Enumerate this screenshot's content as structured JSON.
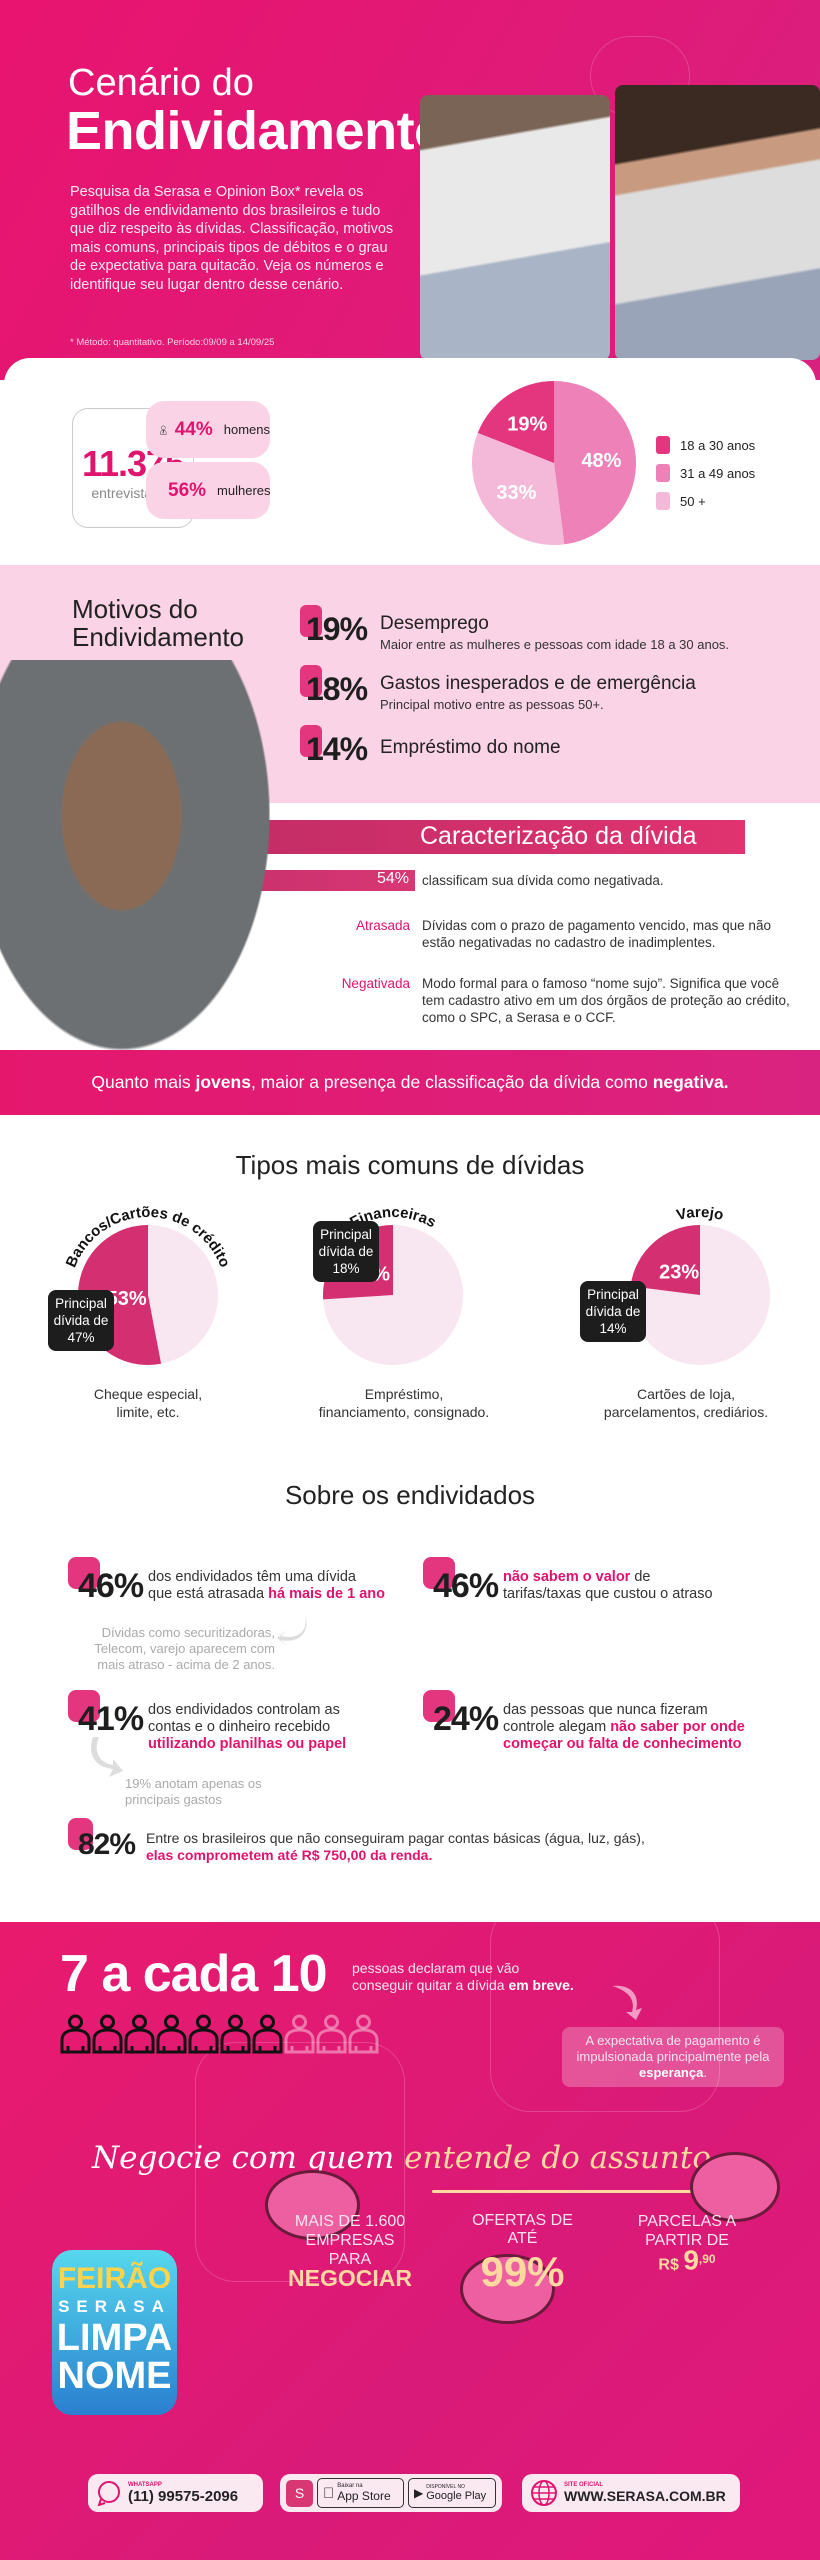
{
  "hero": {
    "title_line1": "Cenário do",
    "title_line2": "Endividamento",
    "intro": "Pesquisa da Serasa e Opinion Box* revela os gatilhos de endividamento dos brasileiros e tudo que diz respeito às dívidas. Classificação, motivos mais comuns, principais tipos de débitos e o grau de expectativa para quitacão. Veja os números e identifique seu lugar dentro desse cenário.",
    "footnote": "* Método: quantitativo. Período:09/09 a 14/09/25"
  },
  "stats": {
    "total": "11.375",
    "total_label": "entrevistados",
    "men_pct": "44%",
    "men_label": "homens",
    "women_pct": "56%",
    "women_label": "mulheres",
    "legend": [
      {
        "label": "18 a 30 anos",
        "color": "#e4357f"
      },
      {
        "label": "31 a 49 anos",
        "color": "#ee82b8"
      },
      {
        "label": "50 +",
        "color": "#f4b9d9"
      }
    ]
  },
  "motivos": {
    "title": "Motivos do Endividamento",
    "items": [
      {
        "pct": "19%",
        "title": "Desemprego",
        "sub": "Maior entre as mulheres e pessoas com idade 18 a 30 anos."
      },
      {
        "pct": "18%",
        "title": "Gastos inesperados e de emergência",
        "sub": "Principal motivo entre as pessoas 50+."
      },
      {
        "pct": "14%",
        "title": "Empréstimo do nome",
        "sub": ""
      }
    ]
  },
  "caracterizacao": {
    "title": "Caracterização da dívida",
    "pct": "54%",
    "pct_text": "classificam sua dívida como negativada.",
    "rows": [
      {
        "label": "Atrasada",
        "text": "Dívidas com o prazo de pagamento vencido, mas que não estão negativadas no cadastro de inadimplentes."
      },
      {
        "label": "Negativada",
        "text": "Modo formal para o famoso “nome sujo”. Significa que você tem cadastro ativo em um dos órgãos de proteção ao crédito, como o SPC, a Serasa e o CCF."
      }
    ]
  },
  "banner": {
    "pre": "Quanto mais ",
    "b1": "jovens",
    "mid": ", maior a presença de classificação da dívida como ",
    "b2": "negativa."
  },
  "tipos": {
    "title": "Tipos mais comuns de dívidas"
  },
  "chart_data": [
    {
      "type": "pie",
      "series": [
        {
          "label": "18 a 30 anos",
          "value": 19
        },
        {
          "label": "31 a 49 anos",
          "value": 48
        },
        {
          "label": "50 +",
          "value": 33
        }
      ],
      "labels": [
        "19%",
        "48%",
        "33%"
      ]
    },
    {
      "type": "pie",
      "title": "Bancos/Cartões de crédito",
      "value": 53,
      "label": "53%",
      "tag": "Principal dívida de 47%",
      "caption_line1": "Cheque especial,",
      "caption_line2": "limite, etc."
    },
    {
      "type": "pie",
      "title": "Financeiras",
      "value": 26,
      "label": "26%",
      "tag": "Principal dívida de 18%",
      "caption_line1": "Empréstimo,",
      "caption_line2": "financiamento, consignado."
    },
    {
      "type": "pie",
      "title": "Varejo",
      "value": 23,
      "label": "23%",
      "tag": "Principal dívida de 14%",
      "caption_line1": "Cartões de loja,",
      "caption_line2": "parcelamentos, crediários."
    }
  ],
  "sobre": {
    "title": "Sobre os endividados",
    "s1": {
      "pct": "46%",
      "l1": "dos endividados têm uma dívida",
      "l2": "que está atrasada ",
      "hl": "há mais de 1 ano",
      "note": "Dívidas como securitizadoras, Telecom, varejo aparecem com mais atraso - acima de 2 anos."
    },
    "s2": {
      "pct": "46%",
      "hl": "não sabem o valor",
      "l1": " de",
      "l2": "tarifas/taxas que custou o atraso"
    },
    "s3": {
      "pct": "41%",
      "l1": "dos endividados controlam as",
      "l2": "contas e o dinheiro recebido",
      "hl": "utilizando planilhas ou papel",
      "note": "19% anotam apenas os principais gastos"
    },
    "s4": {
      "pct": "24%",
      "l1": "das pessoas que nunca fizeram",
      "l2": "controle alegam ",
      "hl1": "não saber por onde",
      "hl2": "começar ou falta de conhecimento"
    },
    "s5": {
      "pct": "82%",
      "l1": "Entre os brasileiros que não conseguiram pagar contas básicas (água, luz, gás),",
      "hl": "elas comprometem até R$ 750,00 da renda."
    }
  },
  "expectativa": {
    "big": "7 a cada 10",
    "l1": "pessoas declaram que vão",
    "l2": "conseguir quitar a dívida ",
    "b": "em breve.",
    "filled": 7,
    "total": 10,
    "note_pre": "A expectativa de pagamento é impulsionada principalmente pela ",
    "note_b": "esperança",
    "note_end": "."
  },
  "slogan": {
    "a": "Negocie com quem ",
    "b": "entende do assunto."
  },
  "feirao": {
    "logo": "FEIRÃO SERASA LIMPA NOME",
    "o1": {
      "l1": "MAIS DE 1.600",
      "l2": "EMPRESAS PARA",
      "big": "NEGOCIAR"
    },
    "o2": {
      "l1": "OFERTAS DE ATÉ",
      "big": "99%"
    },
    "o3": {
      "l1": "PARCELAS A",
      "l2": "PARTIR DE",
      "cur": "R$",
      "big": "9",
      "cents": ",90"
    }
  },
  "footer": {
    "wa_label": "WHATSAPP",
    "wa": "(11) 99575-2096",
    "app_small": "Baixar na",
    "app": "App Store",
    "gp_small": "DISPONÍVEL NO",
    "gp": "Google Play",
    "site_label": "SITE OFICIAL",
    "site": "WWW.SERASA.COM.BR"
  }
}
